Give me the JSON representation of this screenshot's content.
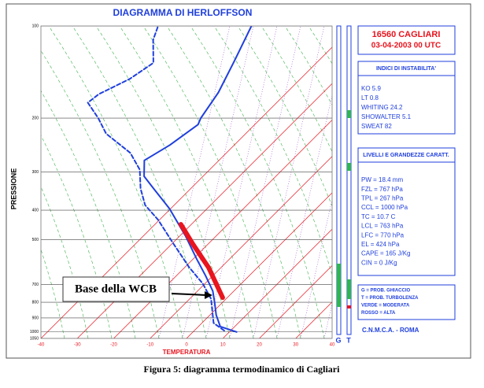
{
  "chart_data": {
    "type": "skewt",
    "title": "DIAGRAMMA DI HERLOFFSON",
    "x_label": "TEMPERATURA",
    "y_label": "PRESSIONE",
    "xlim": [
      -40,
      40
    ],
    "xticks": [
      -40,
      -30,
      -20,
      -10,
      0,
      10,
      20,
      30,
      40
    ],
    "ylim": [
      1050,
      100
    ],
    "log_y": true,
    "yticks": [
      100,
      200,
      300,
      400,
      500,
      700,
      800,
      900,
      1000,
      1050
    ],
    "series": [
      {
        "color": "#1f3fdd",
        "style": "solid",
        "pressure": [
          1000,
          960,
          880,
          800,
          735,
          655,
          580,
          485,
          395,
          340,
          310,
          275,
          245,
          210,
          200,
          165,
          130,
          100
        ],
        "temperature": [
          12,
          6,
          1.7,
          -2.2,
          -5.8,
          -12,
          -18.8,
          -28.5,
          -40.4,
          -50.2,
          -56.2,
          -60.5,
          -57.7,
          -55.6,
          -56.6,
          -58.8,
          -63.1,
          -68
        ]
      },
      {
        "color": "#1f3fdd",
        "style": "dashed",
        "pressure": [
          990,
          935,
          855,
          780,
          695,
          615,
          515,
          430,
          385,
          340,
          295,
          260,
          225,
          200,
          178,
          167,
          149,
          132,
          111,
          101
        ],
        "temperature": [
          8.2,
          3.2,
          -0.4,
          -4.1,
          -10.6,
          -18.8,
          -29.6,
          -40.4,
          -48,
          -53.8,
          -59.2,
          -66.4,
          -78.3,
          -84.8,
          -91.9,
          -91.2,
          -86.9,
          -84.8,
          -91.2,
          -93.4
        ]
      },
      {
        "color": "#e8141e",
        "style": "thick",
        "pressure": [
          772,
          616,
          516,
          445
        ],
        "temperature": [
          -1.3,
          -13.4,
          -24.2,
          -32.9
        ]
      }
    ],
    "annotation": "Base della WCB"
  },
  "panel": {
    "station": "16560 CAGLIARI",
    "date": "03-04-2003 00 UTC",
    "indices": {
      "title": "INDICI DI INSTABILITA'",
      "items": [
        "KO  5.9",
        "LT  0.8",
        "WHITING  24.2",
        "SHOWALTER  5.1",
        "SWEAT  82"
      ]
    },
    "levels": {
      "title": "LIVELLI E GRANDEZZE CARATT.",
      "items": [
        "PW =  18.4 mm",
        "FZL = 767 hPa",
        "TPL = 267 hPa",
        "CCL = 1000 hPa",
        "TC = 10.7 C",
        "LCL = 763 hPa",
        "LFC = 770 hPa",
        "EL = 424 hPa",
        "CAPE = 165 J/Kg",
        "CIN = 0 J/Kg"
      ]
    },
    "legend": [
      "G = PROB. GHIACCIO",
      "T = PROB. TURBOLENZA",
      "VERDE = MODERATA",
      "ROSSO = ALTA"
    ],
    "bar_labels": [
      "G",
      "T"
    ],
    "source": "C.N.M.C.A. - ROMA"
  },
  "caption": "Figura 5: diagramma termodinamico di Cagliari"
}
